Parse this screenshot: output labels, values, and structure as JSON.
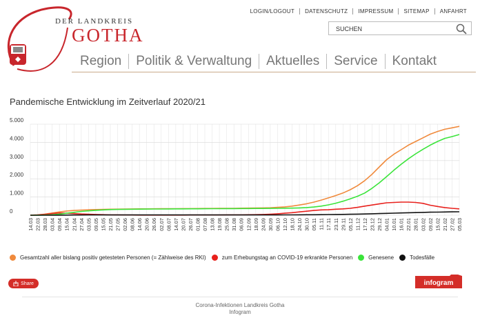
{
  "header": {
    "logo_line1": "DER LANDKREIS",
    "logo_line2": "GOTHA",
    "top_links": [
      "LOGIN/LOGOUT",
      "DATENSCHUTZ",
      "IMPRESSUM",
      "SITEMAP",
      "ANFAHRT"
    ],
    "search_placeholder": "SUCHEN",
    "main_nav": [
      "Region",
      "Politik & Verwaltung",
      "Aktuelles",
      "Service",
      "Kontakt"
    ],
    "brand_color": "#c8262c"
  },
  "page_title": "Pandemische Entwicklung im Zeitverlauf 2020/21",
  "chart_data": {
    "type": "line",
    "x": [
      "14.03",
      "22.03",
      "28.03",
      "03.04",
      "09.04",
      "15.04",
      "21.04",
      "27.04",
      "03.05",
      "09.05",
      "15.05",
      "21.05",
      "27.05",
      "02.06",
      "08.06",
      "14.06",
      "20.06",
      "26.06",
      "02.07",
      "08.07",
      "14.07",
      "20.07",
      "26.07",
      "01.08",
      "07.08",
      "13.08",
      "19.08",
      "25.08",
      "31.08",
      "06.09",
      "12.09",
      "18.09",
      "24.09",
      "30.09",
      "06.10",
      "12.10",
      "18.10",
      "24.10",
      "30.10",
      "05.11",
      "11.11",
      "17.11",
      "23.11",
      "29.11",
      "05.12",
      "11.12",
      "17.12",
      "23.12",
      "29.12",
      "04.01",
      "10.01",
      "16.01",
      "22.01",
      "28.01",
      "03.02",
      "09.02",
      "15.02",
      "21.02",
      "27.02",
      "05.03"
    ],
    "ylim": [
      0,
      5000
    ],
    "yticks": [
      "0",
      "1.000",
      "2.000",
      "3.000",
      "4.000",
      "5.000"
    ],
    "series": [
      {
        "name": "Gesamtzahl aller bislang positiv getesteten Personen (= Zählweise des RKI)",
        "color": "#f08a3c",
        "values": [
          5,
          20,
          60,
          120,
          180,
          230,
          260,
          280,
          300,
          310,
          320,
          330,
          335,
          340,
          345,
          348,
          350,
          352,
          355,
          358,
          360,
          362,
          365,
          368,
          370,
          372,
          375,
          378,
          380,
          385,
          390,
          395,
          400,
          410,
          430,
          460,
          500,
          560,
          630,
          720,
          830,
          950,
          1080,
          1220,
          1400,
          1620,
          1900,
          2250,
          2650,
          3050,
          3350,
          3600,
          3850,
          4050,
          4250,
          4450,
          4600,
          4720,
          4800,
          4880
        ]
      },
      {
        "name": "zum Erhebungstag an COVID-19 erkrankte Personen",
        "color": "#e8201c",
        "values": [
          5,
          15,
          50,
          90,
          120,
          110,
          90,
          70,
          55,
          40,
          30,
          20,
          15,
          12,
          10,
          8,
          8,
          8,
          8,
          8,
          8,
          8,
          10,
          10,
          10,
          12,
          12,
          15,
          18,
          20,
          25,
          30,
          40,
          55,
          80,
          110,
          140,
          180,
          220,
          260,
          290,
          300,
          330,
          350,
          380,
          430,
          500,
          560,
          620,
          680,
          700,
          720,
          720,
          700,
          650,
          550,
          480,
          420,
          380,
          350
        ]
      },
      {
        "name": "Genesene",
        "color": "#3ae43a",
        "values": [
          0,
          5,
          10,
          25,
          60,
          110,
          160,
          210,
          240,
          270,
          290,
          310,
          320,
          325,
          330,
          335,
          338,
          340,
          342,
          345,
          348,
          350,
          352,
          354,
          356,
          358,
          360,
          362,
          364,
          366,
          368,
          370,
          372,
          375,
          380,
          385,
          390,
          400,
          420,
          450,
          500,
          570,
          660,
          770,
          900,
          1040,
          1220,
          1480,
          1780,
          2120,
          2470,
          2800,
          3100,
          3370,
          3620,
          3850,
          4050,
          4220,
          4320,
          4430
        ]
      },
      {
        "name": "Todesfälle",
        "color": "#111111",
        "values": [
          0,
          0,
          0,
          2,
          5,
          8,
          10,
          12,
          14,
          15,
          16,
          16,
          16,
          16,
          16,
          16,
          16,
          16,
          16,
          16,
          16,
          16,
          16,
          16,
          16,
          16,
          16,
          16,
          16,
          16,
          16,
          16,
          16,
          16,
          17,
          18,
          20,
          22,
          25,
          28,
          32,
          36,
          40,
          45,
          52,
          60,
          70,
          80,
          92,
          104,
          115,
          125,
          135,
          145,
          155,
          165,
          172,
          178,
          184,
          190
        ]
      }
    ],
    "grid": true,
    "legend_position": "bottom"
  },
  "share_label": "Share",
  "infogram_label": "infogram",
  "footer": {
    "line1": "Corona-Infektionen Landkreis Gotha",
    "line2": "Infogram"
  }
}
